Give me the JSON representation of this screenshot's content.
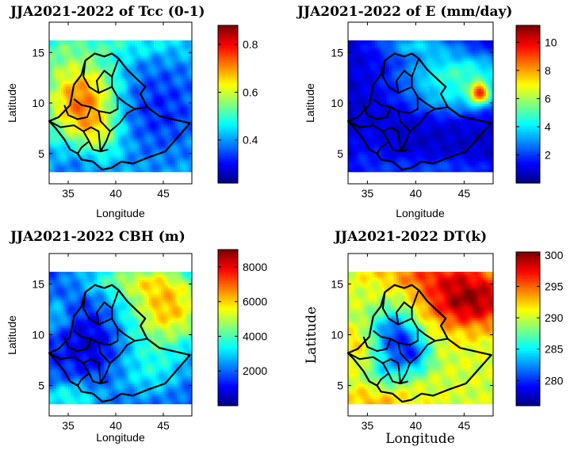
{
  "chart_data": [
    {
      "type": "heatmap",
      "title": "JJA2021-2022 of Tcc (0-1)",
      "xlabel": "Longitude",
      "ylabel": "Latitude",
      "xlim": [
        33,
        48
      ],
      "ylim": [
        2,
        18
      ],
      "xticks": [
        35,
        40,
        45
      ],
      "yticks": [
        5,
        10,
        15
      ],
      "colorbar": {
        "min": 0.22,
        "max": 0.88,
        "ticks": [
          0.4,
          0.6,
          0.8
        ],
        "tick_labels": [
          "0.4",
          "0.6",
          "0.8"
        ]
      },
      "pattern": "tcc"
    },
    {
      "type": "heatmap",
      "title": "JJA2021-2022 of E (mm/day)",
      "xlabel": "Longitude",
      "ylabel": "Latitude",
      "xlim": [
        33,
        48
      ],
      "ylim": [
        2,
        18
      ],
      "xticks": [
        35,
        40,
        45
      ],
      "yticks": [
        5,
        10,
        15
      ],
      "colorbar": {
        "min": 0,
        "max": 11.2,
        "ticks": [
          2,
          4,
          6,
          8,
          10
        ],
        "tick_labels": [
          "2",
          "4",
          "6",
          "8",
          "10"
        ]
      },
      "pattern": "evap"
    },
    {
      "type": "heatmap",
      "title": "JJA2021-2022 CBH (m)",
      "xlabel": "Longitude",
      "ylabel": "Latitude",
      "xlim": [
        33,
        48
      ],
      "ylim": [
        2,
        18
      ],
      "xticks": [
        35,
        40,
        45
      ],
      "yticks": [
        5,
        10,
        15
      ],
      "colorbar": {
        "min": 0,
        "max": 9000,
        "ticks": [
          2000,
          4000,
          6000,
          8000
        ],
        "tick_labels": [
          "2000",
          "4000",
          "6000",
          "8000"
        ]
      },
      "pattern": "cbh"
    },
    {
      "type": "heatmap",
      "title": "JJA2021-2022 DT(k)",
      "xlabel": "Longitude",
      "ylabel": "Latitude",
      "xlim": [
        33,
        48
      ],
      "ylim": [
        2,
        18
      ],
      "xticks": [
        35,
        40,
        45
      ],
      "yticks": [
        5,
        10,
        15
      ],
      "colorbar": {
        "min": 276,
        "max": 300.5,
        "ticks": [
          280,
          285,
          290,
          295,
          300
        ],
        "tick_labels": [
          "280",
          "285",
          "290",
          "295",
          "300"
        ]
      },
      "pattern": "dt"
    }
  ],
  "map_data": {
    "data_lon_range": [
      33,
      48
    ],
    "data_lat_range": [
      3.2,
      16
    ],
    "outline": [
      [
        33,
        8.2
      ],
      [
        34,
        8.6
      ],
      [
        35.2,
        9.8
      ],
      [
        35.6,
        11.8
      ],
      [
        36.4,
        12.8
      ],
      [
        36.8,
        14.2
      ],
      [
        37.8,
        14.9
      ],
      [
        38.8,
        14.6
      ],
      [
        39.6,
        14.9
      ],
      [
        40.3,
        14.4
      ],
      [
        41.2,
        13.3
      ],
      [
        42.2,
        12.4
      ],
      [
        43.1,
        11.6
      ],
      [
        42.6,
        10.9
      ],
      [
        43.3,
        9.6
      ],
      [
        44.6,
        8.7
      ],
      [
        47.8,
        8.0
      ],
      [
        45.2,
        5.2
      ],
      [
        43.4,
        4.6
      ],
      [
        41.8,
        4.0
      ],
      [
        40.6,
        4.2
      ],
      [
        39.6,
        3.6
      ],
      [
        38.6,
        3.4
      ],
      [
        37.6,
        4.2
      ],
      [
        36.4,
        4.4
      ],
      [
        36.0,
        5.0
      ],
      [
        35.2,
        5.4
      ],
      [
        34.6,
        6.4
      ],
      [
        33.6,
        7.6
      ]
    ],
    "boundaries": [
      [
        [
          36.8,
          14.2
        ],
        [
          36.6,
          12.6
        ],
        [
          37.2,
          11.6
        ],
        [
          38.2,
          11.0
        ],
        [
          39.6,
          11.6
        ],
        [
          39.6,
          12.6
        ],
        [
          40.3,
          14.4
        ]
      ],
      [
        [
          39.6,
          11.6
        ],
        [
          40.2,
          10.6
        ],
        [
          41.0,
          10.0
        ],
        [
          42.0,
          9.4
        ],
        [
          43.3,
          9.6
        ]
      ],
      [
        [
          35.6,
          10.4
        ],
        [
          36.4,
          9.8
        ],
        [
          37.4,
          9.6
        ],
        [
          38.2,
          9.2
        ],
        [
          39.4,
          9.0
        ],
        [
          40.2,
          9.4
        ],
        [
          40.2,
          10.6
        ]
      ],
      [
        [
          34.6,
          9.8
        ],
        [
          35.0,
          8.8
        ],
        [
          36.0,
          8.4
        ],
        [
          37.0,
          8.6
        ],
        [
          37.4,
          9.6
        ]
      ],
      [
        [
          33,
          8.2
        ],
        [
          34.2,
          7.6
        ],
        [
          35.6,
          7.8
        ],
        [
          36.6,
          7.2
        ],
        [
          37.2,
          6.2
        ],
        [
          37.6,
          5.4
        ],
        [
          38.4,
          5.2
        ],
        [
          39.2,
          5.4
        ]
      ],
      [
        [
          37.2,
          6.2
        ],
        [
          36.4,
          5.6
        ],
        [
          36.0,
          5.0
        ]
      ],
      [
        [
          38.4,
          5.2
        ],
        [
          39.0,
          6.2
        ],
        [
          39.4,
          7.2
        ],
        [
          40.4,
          8.0
        ],
        [
          41.2,
          9.0
        ],
        [
          42.0,
          9.4
        ]
      ],
      [
        [
          36.6,
          7.2
        ],
        [
          37.4,
          7.6
        ],
        [
          38.2,
          7.2
        ],
        [
          38.4,
          5.2
        ]
      ],
      [
        [
          38.2,
          9.2
        ],
        [
          38.4,
          8.2
        ],
        [
          39.4,
          7.2
        ]
      ],
      [
        [
          38.2,
          11.0
        ],
        [
          38.0,
          12.2
        ],
        [
          38.8,
          13.2
        ],
        [
          39.6,
          12.6
        ]
      ]
    ]
  }
}
